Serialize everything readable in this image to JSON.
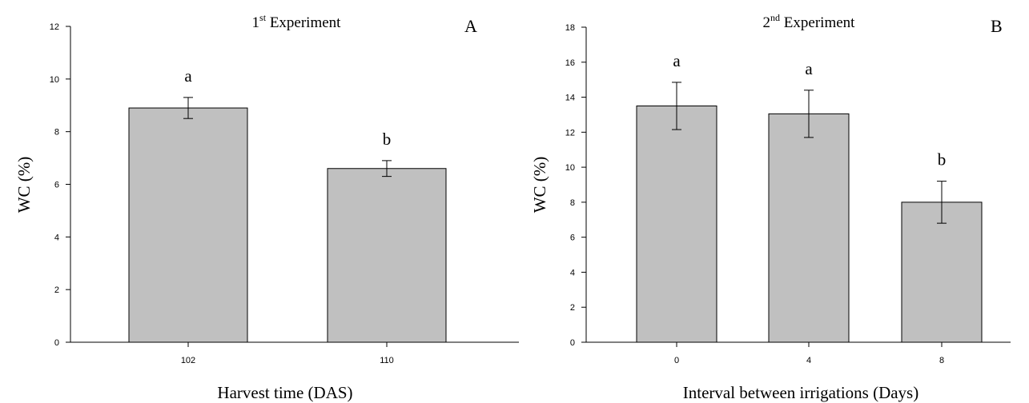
{
  "chart_data": [
    {
      "type": "bar",
      "title_main": "1",
      "title_sup": "st",
      "title_rest": " Experiment",
      "panel_label": "A",
      "xlabel": "Harvest time (DAS)",
      "ylabel": "WC  (%)",
      "ylim": [
        0,
        12
      ],
      "yticks": [
        "0",
        "2",
        "4",
        "6",
        "8",
        "10",
        "12"
      ],
      "categories": [
        "102",
        "110"
      ],
      "values": [
        8.9,
        6.6
      ],
      "errors": [
        0.4,
        0.3
      ],
      "letters": [
        "a",
        "b"
      ],
      "bar_color": "#c0c0c0",
      "grid": false
    },
    {
      "type": "bar",
      "title_main": "2",
      "title_sup": "nd",
      "title_rest": " Experiment",
      "panel_label": "B",
      "xlabel": "Interval between irrigations (Days)",
      "ylabel": "WC  (%)",
      "ylim": [
        0,
        18
      ],
      "yticks": [
        "0",
        "2",
        "4",
        "6",
        "8",
        "10",
        "12",
        "14",
        "16",
        "18"
      ],
      "categories": [
        "0",
        "4",
        "8"
      ],
      "values": [
        13.5,
        13.05,
        8.0
      ],
      "errors": [
        1.35,
        1.35,
        1.2
      ],
      "letters": [
        "a",
        "a",
        "b"
      ],
      "bar_color": "#c0c0c0",
      "grid": false
    }
  ]
}
